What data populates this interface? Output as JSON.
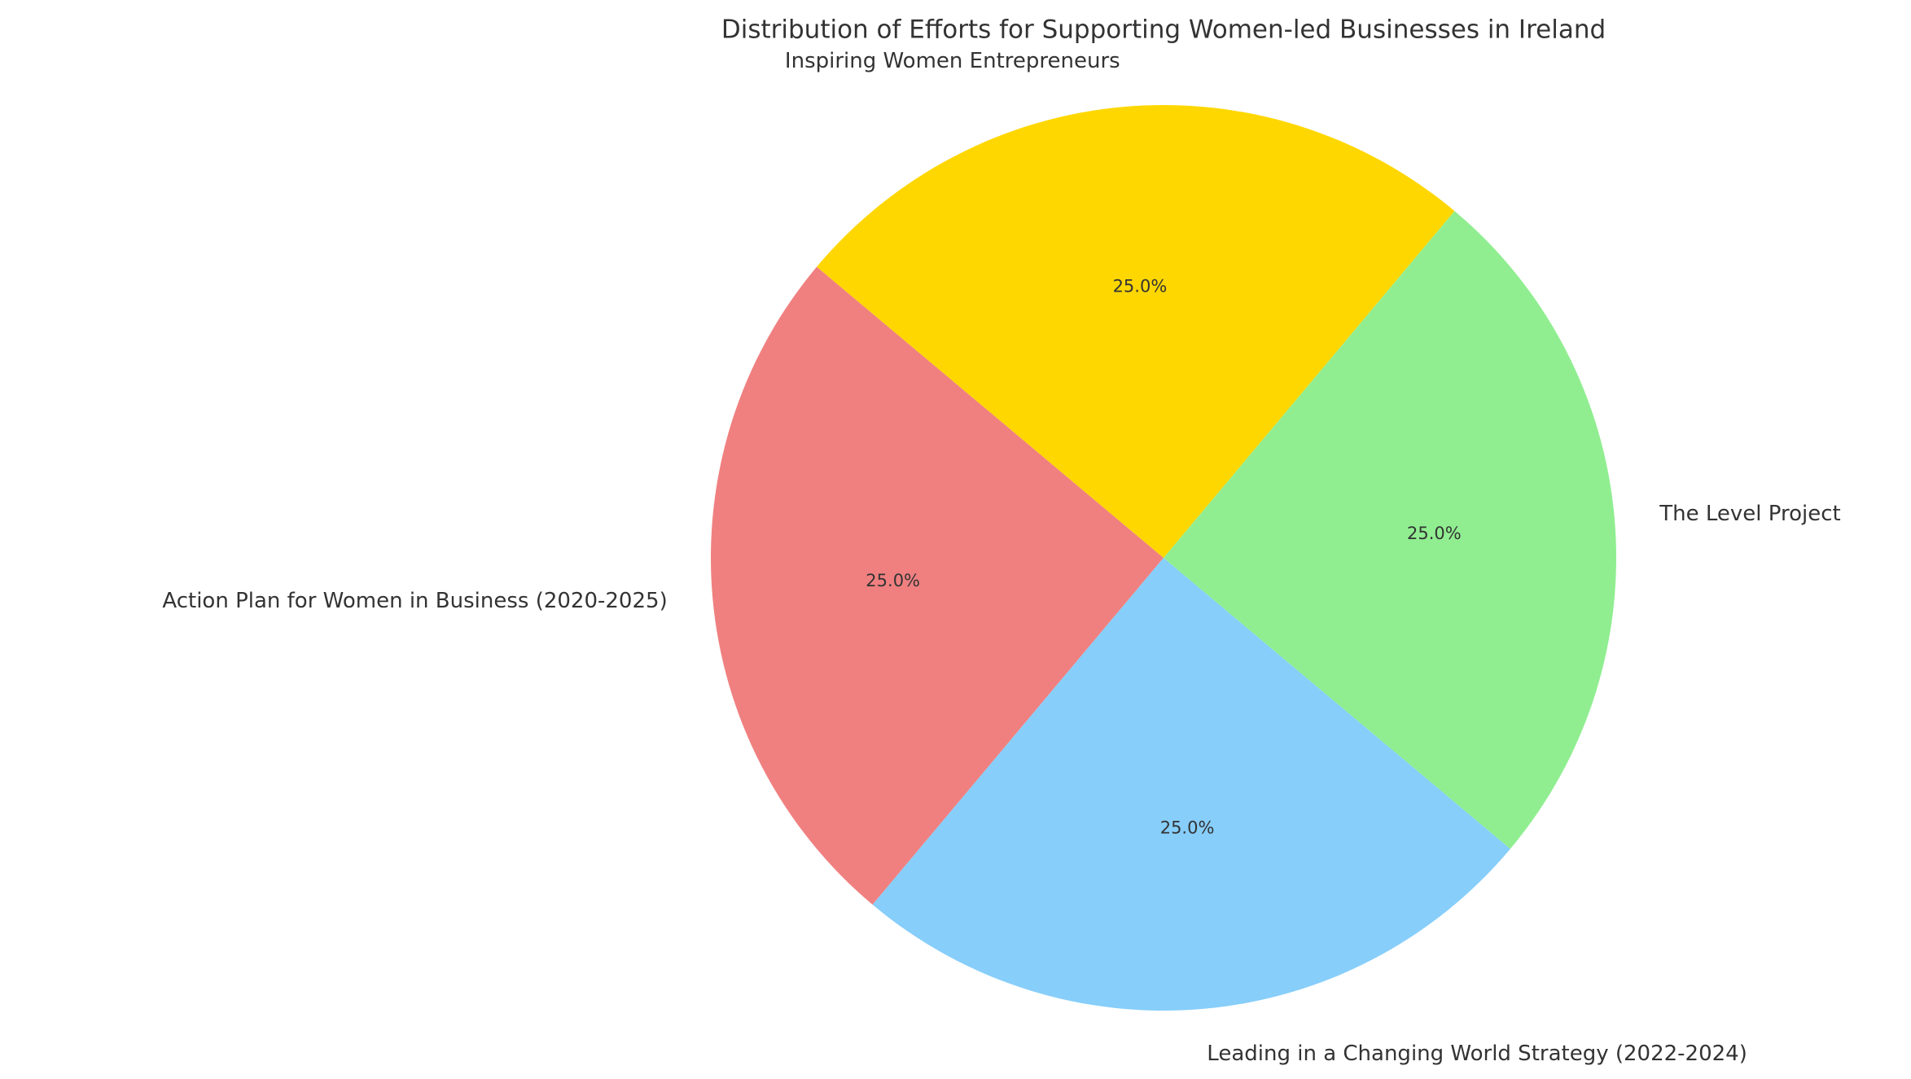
{
  "chart_data": {
    "type": "pie",
    "title": "Distribution of Efforts for Supporting Women-led Businesses in Ireland",
    "categories": [
      "Action Plan for Women in Business (2020-2025)",
      "Leading in a Changing World Strategy (2022-2024)",
      "The Level Project",
      "Inspiring Women Entrepreneurs"
    ],
    "values": [
      25,
      25,
      25,
      25
    ],
    "value_labels": [
      "25.0%",
      "25.0%",
      "25.0%",
      "25.0%"
    ],
    "colors": [
      "#f08080",
      "#87cefa",
      "#90ee90",
      "#ffd700"
    ],
    "startangle": 140
  }
}
